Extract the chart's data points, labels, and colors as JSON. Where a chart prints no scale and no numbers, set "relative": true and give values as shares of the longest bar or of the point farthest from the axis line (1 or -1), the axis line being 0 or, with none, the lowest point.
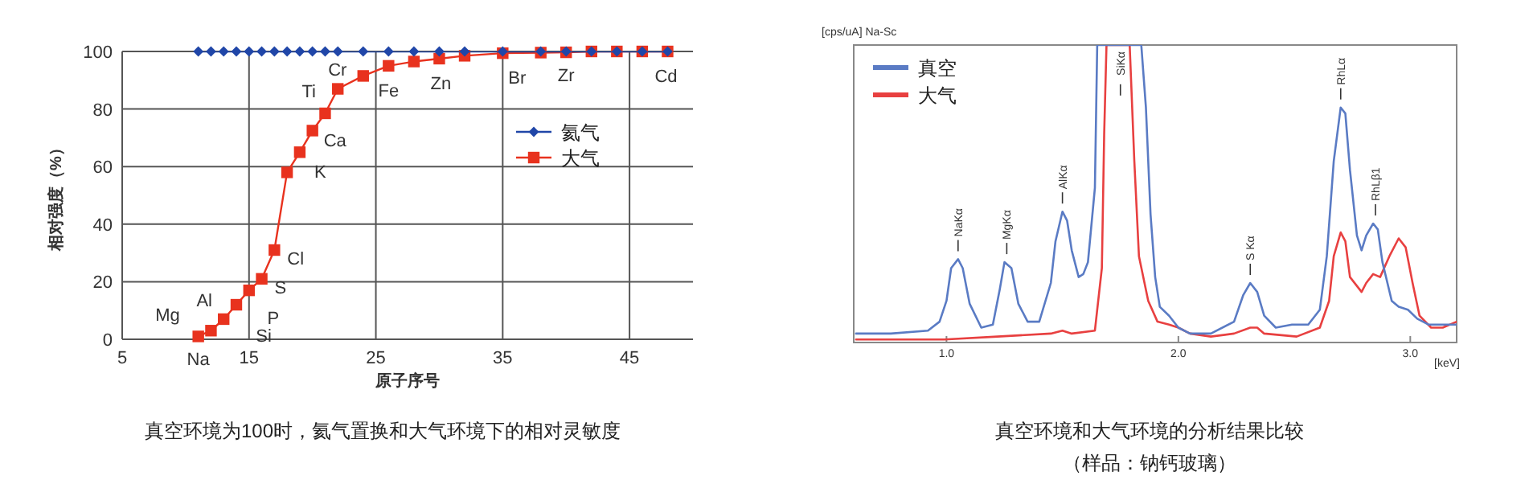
{
  "chart_data": [
    {
      "type": "line",
      "xlabel": "原子序号",
      "ylabel": "相对强度（%）",
      "xlim": [
        5,
        50
      ],
      "ylim": [
        0,
        100
      ],
      "xticks": [
        5,
        15,
        25,
        35,
        45
      ],
      "yticks": [
        0,
        20,
        40,
        60,
        80,
        100
      ],
      "grid": true,
      "legend": "right",
      "series": [
        {
          "name": "氦气",
          "color": "#2046a8",
          "marker": "diamond",
          "x": [
            11,
            12,
            13,
            14,
            15,
            16,
            17,
            18,
            19,
            20,
            21,
            22,
            24,
            26,
            28,
            30,
            32,
            35,
            38,
            40,
            42,
            44,
            46,
            48
          ],
          "values": [
            100,
            100,
            100,
            100,
            100,
            100,
            100,
            100,
            100,
            100,
            100,
            100,
            100,
            100,
            100,
            100,
            100,
            100,
            100,
            100,
            100,
            100,
            100,
            100
          ]
        },
        {
          "name": "大气",
          "color": "#e8321e",
          "marker": "square",
          "x": [
            11,
            12,
            13,
            14,
            15,
            16,
            17,
            18,
            19,
            20,
            21,
            22,
            24,
            26,
            28,
            30,
            32,
            35,
            38,
            40,
            42,
            44,
            46,
            48
          ],
          "values": [
            1,
            3,
            7,
            12,
            17,
            21,
            31,
            58,
            65,
            72.5,
            78.5,
            87,
            91.5,
            95,
            96.5,
            97.5,
            98.5,
            99.4,
            99.6,
            99.7,
            100,
            100,
            100,
            100
          ]
        }
      ],
      "annotations": [
        "真空环境为100时，氦气置换和大气环境下的相对灵敏度",
        {
          "text": "Na",
          "x": 11,
          "y": 1
        },
        {
          "text": "Mg",
          "x": 12,
          "y": 3
        },
        {
          "text": "Al",
          "x": 13,
          "y": 7
        },
        {
          "text": "Si",
          "x": 14,
          "y": 12
        },
        {
          "text": "P",
          "x": 15,
          "y": 17
        },
        {
          "text": "S",
          "x": 16,
          "y": 21
        },
        {
          "text": "Cl",
          "x": 17,
          "y": 31
        },
        {
          "text": "K",
          "x": 19,
          "y": 65
        },
        {
          "text": "Ca",
          "x": 20,
          "y": 72.5
        },
        {
          "text": "Ti",
          "x": 22,
          "y": 87
        },
        {
          "text": "Cr",
          "x": 24,
          "y": 91.5
        },
        {
          "text": "Fe",
          "x": 26,
          "y": 95
        },
        {
          "text": "Zn",
          "x": 30,
          "y": 97.5
        },
        {
          "text": "Br",
          "x": 35,
          "y": 99.4
        },
        {
          "text": "Zr",
          "x": 40,
          "y": 99.7
        },
        {
          "text": "Cd",
          "x": 48,
          "y": 100
        }
      ]
    },
    {
      "type": "line",
      "xlabel": "[keV]",
      "ylabel": "[cps/uA] Na-Sc",
      "relative": true,
      "xlim": [
        0.6,
        3.2
      ],
      "xticks": [
        {
          "value": 1,
          "label": "1.0"
        },
        {
          "value": 2,
          "label": "2.0"
        },
        {
          "value": 3,
          "label": "3.0"
        }
      ],
      "legend": "top left",
      "series": [
        {
          "name": "真空",
          "color": "#5a7bc4",
          "x": [
            0.61,
            0.76,
            0.92,
            0.97,
            1.0,
            1.02,
            1.05,
            1.07,
            1.1,
            1.15,
            1.2,
            1.23,
            1.25,
            1.28,
            1.31,
            1.35,
            1.4,
            1.45,
            1.47,
            1.5,
            1.52,
            1.54,
            1.57,
            1.59,
            1.61,
            1.64,
            1.65,
            1.84,
            1.86,
            1.88,
            1.9,
            1.92,
            1.96,
            2.0,
            2.05,
            2.14,
            2.24,
            2.28,
            2.31,
            2.34,
            2.37,
            2.42,
            2.49,
            2.56,
            2.61,
            2.64,
            2.67,
            2.7,
            2.72,
            2.74,
            2.77,
            2.79,
            2.81,
            2.84,
            2.86,
            2.88,
            2.92,
            2.95,
            2.99,
            3.03,
            3.08,
            3.14,
            3.2
          ],
          "values": [
            0.03,
            0.03,
            0.04,
            0.07,
            0.14,
            0.25,
            0.28,
            0.25,
            0.13,
            0.05,
            0.06,
            0.18,
            0.27,
            0.25,
            0.13,
            0.07,
            0.07,
            0.2,
            0.34,
            0.44,
            0.41,
            0.31,
            0.22,
            0.23,
            0.27,
            0.52,
            1,
            1,
            0.79,
            0.43,
            0.22,
            0.12,
            0.09,
            0.05,
            0.03,
            0.03,
            0.07,
            0.16,
            0.2,
            0.17,
            0.09,
            0.05,
            0.06,
            0.06,
            0.11,
            0.29,
            0.61,
            0.79,
            0.77,
            0.58,
            0.36,
            0.31,
            0.36,
            0.4,
            0.38,
            0.27,
            0.14,
            0.12,
            0.11,
            0.08,
            0.06,
            0.06,
            0.06
          ]
        },
        {
          "name": "大气",
          "color": "#e84040",
          "x": [
            0.61,
            0.99,
            1.22,
            1.45,
            1.5,
            1.54,
            1.64,
            1.67,
            1.68,
            1.69,
            1.79,
            1.81,
            1.83,
            1.87,
            1.91,
            1.96,
            2.0,
            2.05,
            2.14,
            2.24,
            2.31,
            2.34,
            2.37,
            2.51,
            2.61,
            2.65,
            2.67,
            2.7,
            2.72,
            2.74,
            2.79,
            2.81,
            2.84,
            2.87,
            2.91,
            2.95,
            2.98,
            3.01,
            3.04,
            3.09,
            3.14,
            3.2
          ],
          "values": [
            0.01,
            0.01,
            0.02,
            0.03,
            0.04,
            0.03,
            0.04,
            0.25,
            0.7,
            1,
            1,
            0.61,
            0.29,
            0.14,
            0.07,
            0.06,
            0.05,
            0.03,
            0.02,
            0.03,
            0.05,
            0.05,
            0.03,
            0.02,
            0.05,
            0.14,
            0.29,
            0.37,
            0.34,
            0.22,
            0.17,
            0.2,
            0.23,
            0.22,
            0.29,
            0.35,
            0.32,
            0.2,
            0.09,
            0.05,
            0.05,
            0.07
          ]
        }
      ],
      "annotations": [
        "真空环境和大气环境的分析结果比较",
        "（样品：钠钙玻璃）",
        {
          "text": "NaKα",
          "x": 1.05,
          "y": 0.28
        },
        {
          "text": "MgKα",
          "x": 1.26,
          "y": 0.27
        },
        {
          "text": "AlKα",
          "x": 1.5,
          "y": 0.44
        },
        {
          "text": "SiKα",
          "x": 1.75,
          "y": 1
        },
        {
          "text": "S Kα",
          "x": 2.31,
          "y": 0.2
        },
        {
          "text": "RhLα",
          "x": 2.7,
          "y": 0.79
        },
        {
          "text": "RhLβ1",
          "x": 2.85,
          "y": 0.4
        }
      ]
    }
  ]
}
